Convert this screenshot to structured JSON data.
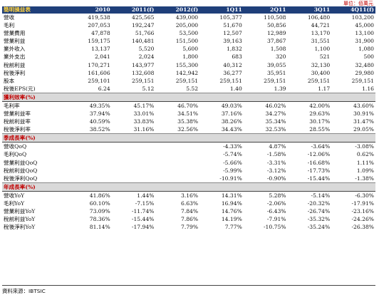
{
  "unit_note": "單位：佰萬元",
  "header": [
    "簡明損益表",
    "2010",
    "2011(f)",
    "2012(f)",
    "1Q11",
    "2Q11",
    "3Q11",
    "4Q11(f)"
  ],
  "income": [
    {
      "label": "營收",
      "values": [
        "419,538",
        "425,565",
        "439,000",
        "105,377",
        "110,508",
        "106,480",
        "103,200"
      ]
    },
    {
      "label": "毛利",
      "values": [
        "207,053",
        "192,247",
        "205,000",
        "51,670",
        "50,856",
        "44,721",
        "45,000"
      ]
    },
    {
      "label": "營業費用",
      "values": [
        "47,878",
        "51,766",
        "53,500",
        "12,507",
        "12,989",
        "13,170",
        "13,100"
      ]
    },
    {
      "label": "營業利益",
      "values": [
        "159,175",
        "140,481",
        "151,500",
        "39,163",
        "37,867",
        "31,551",
        "31,900"
      ]
    },
    {
      "label": "業外收入",
      "values": [
        "13,137",
        "5,520",
        "5,600",
        "1,832",
        "1,508",
        "1,100",
        "1,080"
      ]
    },
    {
      "label": "業外支出",
      "values": [
        "2,041",
        "2,024",
        "1,800",
        "683",
        "320",
        "521",
        "500"
      ]
    },
    {
      "label": "稅前利益",
      "values": [
        "170,271",
        "143,977",
        "155,300",
        "40,312",
        "39,055",
        "32,130",
        "32,480"
      ]
    },
    {
      "label": "稅後淨利",
      "values": [
        "161,606",
        "132,608",
        "142,942",
        "36,277",
        "35,951",
        "30,400",
        "29,980"
      ]
    },
    {
      "label": "股本",
      "values": [
        "259,101",
        "259,151",
        "259,151",
        "259,151",
        "259,151",
        "259,151",
        "259,151"
      ]
    },
    {
      "label": "稅後EPS(元)",
      "values": [
        "6.24",
        "5.12",
        "5.52",
        "1.40",
        "1.39",
        "1.17",
        "1.16"
      ]
    }
  ],
  "margin_title": "獲利效率(%)",
  "margin": [
    {
      "label": "毛利率",
      "values": [
        "49.35%",
        "45.17%",
        "46.70%",
        "49.03%",
        "46.02%",
        "42.00%",
        "43.60%"
      ]
    },
    {
      "label": "營業利益率",
      "values": [
        "37.94%",
        "33.01%",
        "34.51%",
        "37.16%",
        "34.27%",
        "29.63%",
        "30.91%"
      ]
    },
    {
      "label": "稅前利益率",
      "values": [
        "40.59%",
        "33.83%",
        "35.38%",
        "38.26%",
        "35.34%",
        "30.17%",
        "31.47%"
      ]
    },
    {
      "label": "稅後淨利率",
      "values": [
        "38.52%",
        "31.16%",
        "32.56%",
        "34.43%",
        "32.53%",
        "28.55%",
        "29.05%"
      ]
    }
  ],
  "qoq_title": "季成長率(%)",
  "qoq": [
    {
      "label": "營收QoQ",
      "values": [
        "",
        "",
        "",
        "-4.33%",
        "4.87%",
        "-3.64%",
        "-3.08%"
      ]
    },
    {
      "label": "毛利QoQ",
      "values": [
        "",
        "",
        "",
        "-5.74%",
        "-1.58%",
        "-12.06%",
        "0.62%"
      ]
    },
    {
      "label": "營業利益QoQ",
      "values": [
        "",
        "",
        "",
        "-5.66%",
        "-3.31%",
        "-16.68%",
        "1.11%"
      ]
    },
    {
      "label": "稅前利益QoQ",
      "values": [
        "",
        "",
        "",
        "-5.99%",
        "-3.12%",
        "-17.73%",
        "1.09%"
      ]
    },
    {
      "label": "稅後淨利QoQ",
      "values": [
        "",
        "",
        "",
        "-10.91%",
        "-0.90%",
        "-15.44%",
        "-1.38%"
      ]
    }
  ],
  "yoy_title": "年成長率(%)",
  "yoy": [
    {
      "label": "營收YoY",
      "values": [
        "41.86%",
        "1.44%",
        "3.16%",
        "14.31%",
        "5.28%",
        "-5.14%",
        "-6.30%"
      ]
    },
    {
      "label": "毛利YoY",
      "values": [
        "60.10%",
        "-7.15%",
        "6.63%",
        "16.94%",
        "-2.06%",
        "-20.32%",
        "-17.91%"
      ]
    },
    {
      "label": "營業利益YoY",
      "values": [
        "73.09%",
        "-11.74%",
        "7.84%",
        "14.76%",
        "-6.43%",
        "-26.74%",
        "-23.16%"
      ]
    },
    {
      "label": "稅前利益YoY",
      "values": [
        "78.36%",
        "-15.44%",
        "7.86%",
        "14.19%",
        "-7.91%",
        "-35.32%",
        "-24.26%"
      ]
    },
    {
      "label": "稅後淨利YoY",
      "values": [
        "81.14%",
        "-17.94%",
        "7.79%",
        "7.77%",
        "-10.75%",
        "-35.24%",
        "-26.38%"
      ]
    }
  ],
  "source": "資料來源：IBTSIC"
}
